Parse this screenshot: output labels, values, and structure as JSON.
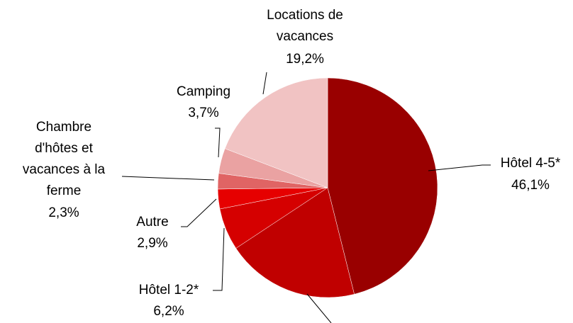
{
  "chart_data": {
    "type": "pie",
    "categories": [
      "Hôtel 4-5*",
      null,
      "Hôtel 1-2*",
      "Autre",
      "Chambre d'hôtes et vacances à la ferme",
      "Camping",
      "Locations de vacances"
    ],
    "values": [
      46.1,
      19.6,
      6.2,
      2.9,
      2.3,
      3.7,
      19.2
    ],
    "value_labels": [
      "46,1%",
      null,
      "6,2%",
      "2,9%",
      "2,3%",
      "3,7%",
      "19,2%"
    ],
    "colors": [
      "#990000",
      "#c00000",
      "#d50000",
      "#e60000",
      "#e06464",
      "#eaa2a2",
      "#f1c3c3"
    ]
  }
}
